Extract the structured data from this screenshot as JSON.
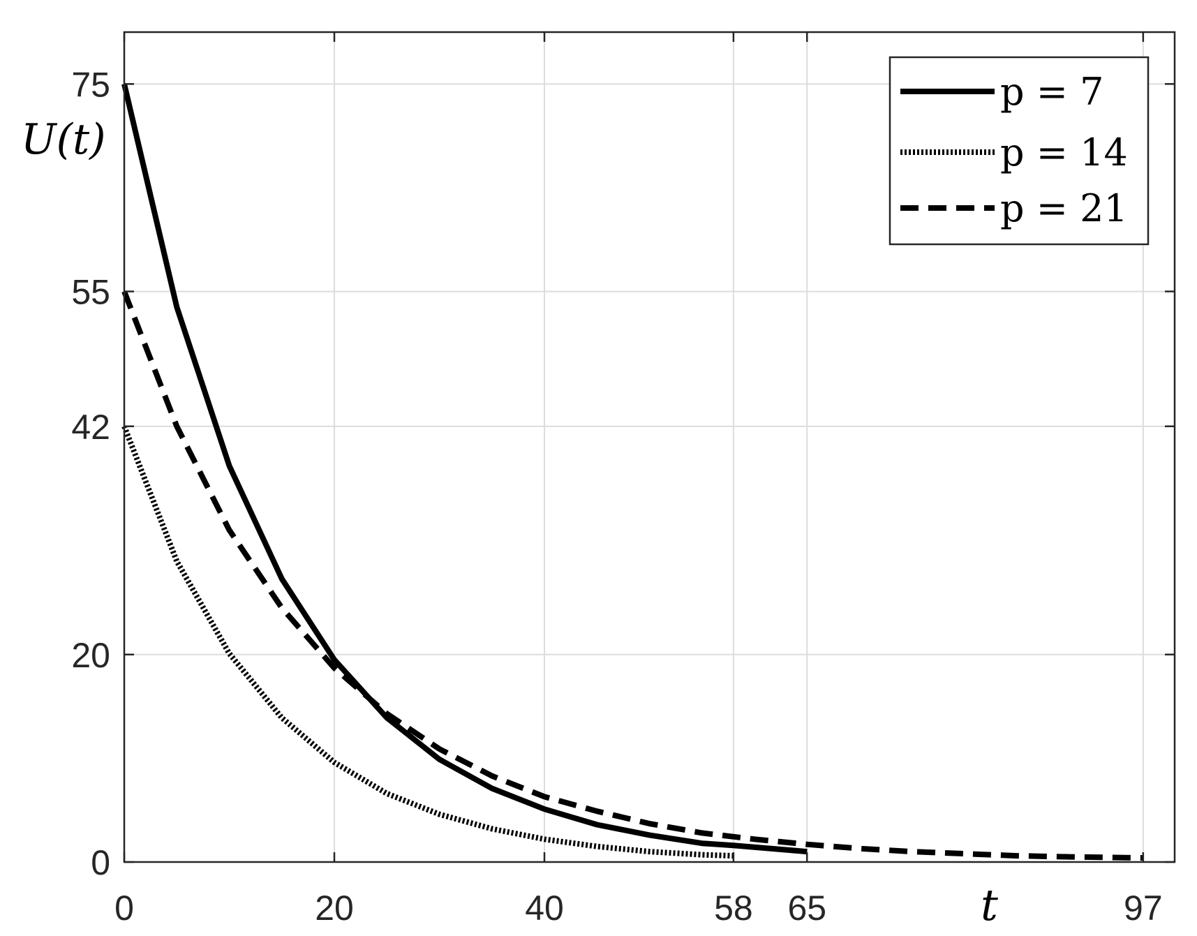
{
  "chart_data": {
    "type": "line",
    "xlabel": "t",
    "ylabel": "U(t)",
    "xlim": [
      0,
      100
    ],
    "ylim": [
      0,
      80
    ],
    "xticks": [
      0,
      20,
      40,
      58,
      65,
      97
    ],
    "yticks": [
      0,
      20,
      42,
      55,
      75
    ],
    "xtick_labels": [
      "0",
      "20",
      "40",
      "58",
      "65",
      "97"
    ],
    "ytick_labels": [
      "0",
      "20",
      "42",
      "55",
      "75"
    ],
    "grid": true,
    "legend_position": "top-right",
    "series": [
      {
        "name": "p = 7",
        "style": "solid",
        "x": [
          0,
          5,
          10,
          15,
          20,
          25,
          30,
          35,
          40,
          45,
          50,
          55,
          58,
          65
        ],
        "y": [
          75,
          53.5,
          38.2,
          27.3,
          19.5,
          13.9,
          9.9,
          7.1,
          5.1,
          3.6,
          2.6,
          1.8,
          1.6,
          1.0
        ]
      },
      {
        "name": "p = 14",
        "style": "dotted",
        "x": [
          0,
          5,
          10,
          15,
          20,
          25,
          30,
          35,
          40,
          45,
          50,
          55,
          58
        ],
        "y": [
          42,
          29.0,
          20.1,
          13.9,
          9.6,
          6.6,
          4.6,
          3.2,
          2.2,
          1.5,
          1.0,
          0.7,
          0.6
        ]
      },
      {
        "name": "p = 21",
        "style": "dashed",
        "x": [
          0,
          5,
          10,
          15,
          20,
          25,
          30,
          35,
          40,
          45,
          50,
          55,
          60,
          65,
          70,
          75,
          80,
          85,
          90,
          97
        ],
        "y": [
          55,
          42.0,
          32.0,
          24.5,
          18.7,
          14.3,
          10.9,
          8.3,
          6.3,
          4.9,
          3.7,
          2.8,
          2.2,
          1.7,
          1.3,
          1.0,
          0.8,
          0.6,
          0.5,
          0.4
        ]
      }
    ]
  }
}
